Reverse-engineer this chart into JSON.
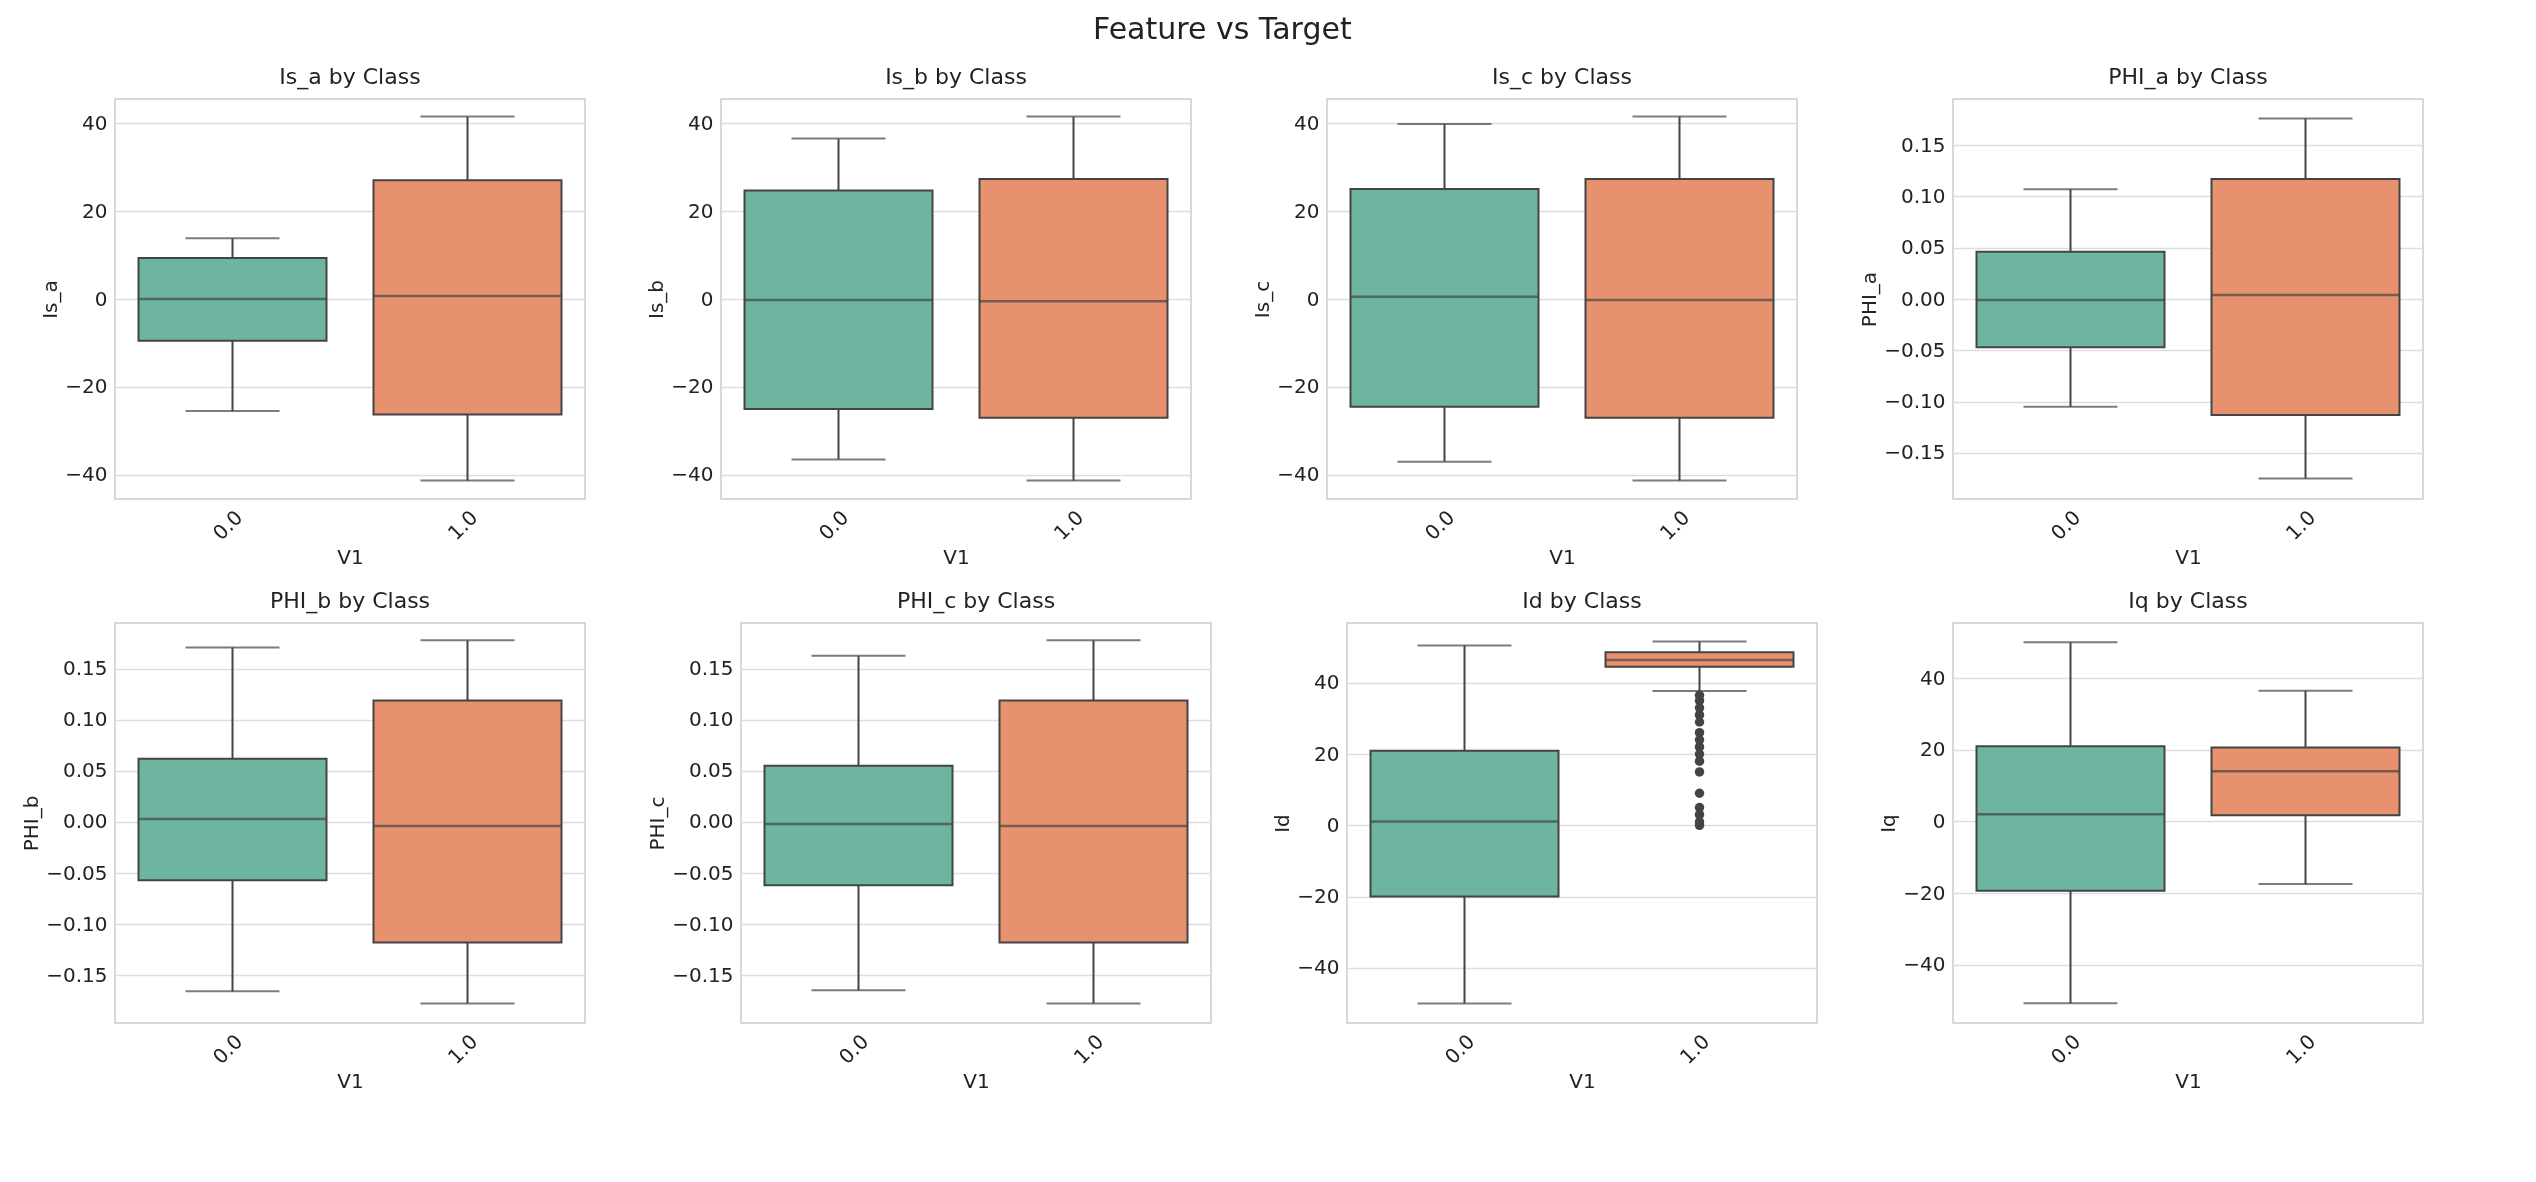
{
  "chart_data": [
    {
      "type": "other",
      "title": "Feature vs Target"
    },
    {
      "type": "box",
      "title": "Is_a by Class",
      "xlabel": "V1",
      "ylabel": "Is_a",
      "categories": [
        "0.0",
        "1.0"
      ],
      "colors": [
        "#6db5a0",
        "#e8916f"
      ],
      "grid": "y",
      "ylim": [
        -45.5,
        45.5
      ],
      "yticks": [
        -40,
        -20,
        0,
        20,
        40
      ],
      "boxes": [
        {
          "low": -25.5,
          "q1": -9.5,
          "median": 0,
          "q3": 9.3,
          "high": 13.8
        },
        {
          "low": -41.3,
          "q1": -26.3,
          "median": 0.7,
          "q3": 27,
          "high": 41.5
        }
      ]
    },
    {
      "type": "box",
      "title": "Is_b by Class",
      "xlabel": "V1",
      "ylabel": "Is_b",
      "categories": [
        "0.0",
        "1.0"
      ],
      "colors": [
        "#6db5a0",
        "#e8916f"
      ],
      "grid": "y",
      "ylim": [
        -45.5,
        45.5
      ],
      "yticks": [
        -40,
        -20,
        0,
        20,
        40
      ],
      "boxes": [
        {
          "low": -36.5,
          "q1": -25,
          "median": -0.2,
          "q3": 24.7,
          "high": 36.5
        },
        {
          "low": -41.3,
          "q1": -27,
          "median": -0.5,
          "q3": 27.3,
          "high": 41.5
        }
      ]
    },
    {
      "type": "box",
      "title": "Is_c by Class",
      "xlabel": "V1",
      "ylabel": "Is_c",
      "categories": [
        "0.0",
        "1.0"
      ],
      "colors": [
        "#6db5a0",
        "#e8916f"
      ],
      "grid": "y",
      "ylim": [
        -45.5,
        45.5
      ],
      "yticks": [
        -40,
        -20,
        0,
        20,
        40
      ],
      "boxes": [
        {
          "low": -37,
          "q1": -24.5,
          "median": 0.5,
          "q3": 25,
          "high": 39.8
        },
        {
          "low": -41.3,
          "q1": -27,
          "median": -0.2,
          "q3": 27.3,
          "high": 41.5
        }
      ]
    },
    {
      "type": "box",
      "title": "PHI_a by Class",
      "xlabel": "V1",
      "ylabel": "PHI_a",
      "categories": [
        "0.0",
        "1.0"
      ],
      "colors": [
        "#6db5a0",
        "#e8916f"
      ],
      "grid": "y",
      "ylim": [
        -0.195,
        0.195
      ],
      "yticks": [
        {
          "value": -0.15,
          "label": "−0.15"
        },
        {
          "value": -0.1,
          "label": "−0.10"
        },
        {
          "value": -0.05,
          "label": "−0.05"
        },
        {
          "value": 0,
          "label": "0.00"
        },
        {
          "value": 0.05,
          "label": "0.05"
        },
        {
          "value": 0.1,
          "label": "0.10"
        },
        {
          "value": 0.15,
          "label": "0.15"
        }
      ],
      "boxes": [
        {
          "low": -0.105,
          "q1": -0.047,
          "median": -0.001,
          "q3": 0.046,
          "high": 0.107
        },
        {
          "low": -0.175,
          "q1": -0.113,
          "median": 0.004,
          "q3": 0.117,
          "high": 0.176
        }
      ]
    },
    {
      "type": "box",
      "title": "PHI_b by Class",
      "xlabel": "V1",
      "ylabel": "PHI_b",
      "categories": [
        "0.0",
        "1.0"
      ],
      "colors": [
        "#6db5a0",
        "#e8916f"
      ],
      "grid": "y",
      "ylim": [
        -0.197,
        0.195
      ],
      "yticks": [
        {
          "value": -0.15,
          "label": "−0.15"
        },
        {
          "value": -0.1,
          "label": "−0.10"
        },
        {
          "value": -0.05,
          "label": "−0.05"
        },
        {
          "value": 0,
          "label": "0.00"
        },
        {
          "value": 0.05,
          "label": "0.05"
        },
        {
          "value": 0.1,
          "label": "0.10"
        },
        {
          "value": 0.15,
          "label": "0.15"
        }
      ],
      "boxes": [
        {
          "low": -0.166,
          "q1": -0.057,
          "median": 0.003,
          "q3": 0.062,
          "high": 0.171
        },
        {
          "low": -0.178,
          "q1": -0.118,
          "median": -0.004,
          "q3": 0.119,
          "high": 0.178
        }
      ]
    },
    {
      "type": "box",
      "title": "PHI_c by Class",
      "xlabel": "V1",
      "ylabel": "PHI_c",
      "categories": [
        "0.0",
        "1.0"
      ],
      "colors": [
        "#6db5a0",
        "#e8916f"
      ],
      "grid": "y",
      "ylim": [
        -0.197,
        0.195
      ],
      "yticks": [
        {
          "value": -0.15,
          "label": "−0.15"
        },
        {
          "value": -0.1,
          "label": "−0.10"
        },
        {
          "value": -0.05,
          "label": "−0.05"
        },
        {
          "value": 0,
          "label": "0.00"
        },
        {
          "value": 0.05,
          "label": "0.05"
        },
        {
          "value": 0.1,
          "label": "0.10"
        },
        {
          "value": 0.15,
          "label": "0.15"
        }
      ],
      "boxes": [
        {
          "low": -0.165,
          "q1": -0.062,
          "median": -0.002,
          "q3": 0.055,
          "high": 0.163
        },
        {
          "low": -0.178,
          "q1": -0.118,
          "median": -0.004,
          "q3": 0.119,
          "high": 0.178
        }
      ]
    },
    {
      "type": "box",
      "title": "Id by Class",
      "xlabel": "V1",
      "ylabel": "Id",
      "categories": [
        "0.0",
        "1.0"
      ],
      "colors": [
        "#6db5a0",
        "#e8916f"
      ],
      "grid": "y",
      "ylim": [
        -55.5,
        56.8
      ],
      "yticks": [
        -40,
        -20,
        0,
        20,
        40
      ],
      "boxes": [
        {
          "low": -50,
          "q1": -20,
          "median": 1.1,
          "q3": 20.9,
          "high": 50.5
        },
        {
          "low": 37.7,
          "q1": 44.5,
          "median": 46.4,
          "q3": 48.6,
          "high": 51.6,
          "outliers": [
            36.5,
            35,
            33,
            31,
            29,
            26,
            24,
            22,
            20,
            18,
            15,
            9,
            5,
            3,
            1,
            0
          ]
        }
      ]
    },
    {
      "type": "box",
      "title": "Iq by Class",
      "xlabel": "V1",
      "ylabel": "Iq",
      "categories": [
        "0.0",
        "1.0"
      ],
      "colors": [
        "#6db5a0",
        "#e8916f"
      ],
      "grid": "y",
      "ylim": [
        -56.3,
        55.4
      ],
      "yticks": [
        -40,
        -20,
        0,
        20,
        40
      ],
      "boxes": [
        {
          "low": -50.8,
          "q1": -19.4,
          "median": 2,
          "q3": 21,
          "high": 50
        },
        {
          "low": -17.5,
          "q1": 1.7,
          "median": 14,
          "q3": 20.6,
          "high": 36.5
        }
      ]
    }
  ]
}
